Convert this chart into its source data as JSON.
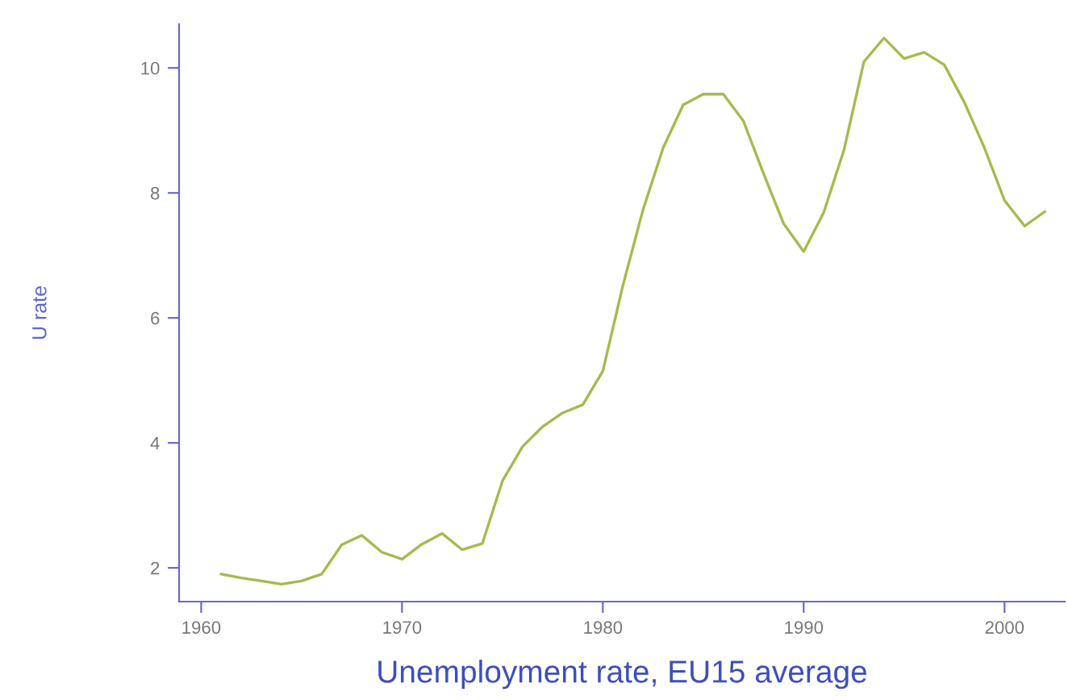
{
  "chart_data": {
    "type": "line",
    "xlabel": "Unemployment rate, EU15 average",
    "ylabel": "U rate",
    "x": [
      1961,
      1962,
      1963,
      1964,
      1965,
      1966,
      1967,
      1968,
      1969,
      1970,
      1971,
      1972,
      1973,
      1974,
      1975,
      1976,
      1977,
      1978,
      1979,
      1980,
      1981,
      1982,
      1983,
      1984,
      1985,
      1986,
      1987,
      1988,
      1989,
      1990,
      1991,
      1992,
      1993,
      1994,
      1995,
      1996,
      1997,
      1998,
      1999,
      2000,
      2001,
      2002
    ],
    "series": [
      {
        "color": "#a9b84c",
        "values": [
          1.9,
          1.84,
          1.79,
          1.74,
          1.79,
          1.9,
          2.37,
          2.52,
          2.25,
          2.14,
          2.38,
          2.55,
          2.29,
          2.39,
          3.39,
          3.94,
          4.26,
          4.48,
          4.61,
          5.15,
          6.52,
          7.73,
          8.72,
          9.41,
          9.58,
          9.58,
          9.15,
          8.31,
          7.51,
          7.06,
          7.69,
          8.68,
          10.1,
          10.48,
          10.15,
          10.25,
          10.05,
          9.45,
          8.72,
          7.88,
          7.47,
          7.7
        ]
      }
    ],
    "xlim": [
      1958.9,
      2003
    ],
    "ylim": [
      1.46,
      10.7
    ],
    "xticks": [
      1960,
      1970,
      1980,
      1990,
      2000
    ],
    "yticks": [
      2,
      4,
      6,
      8,
      10
    ],
    "grid": false,
    "legend": false,
    "marker": "none",
    "line_style": "solid"
  }
}
